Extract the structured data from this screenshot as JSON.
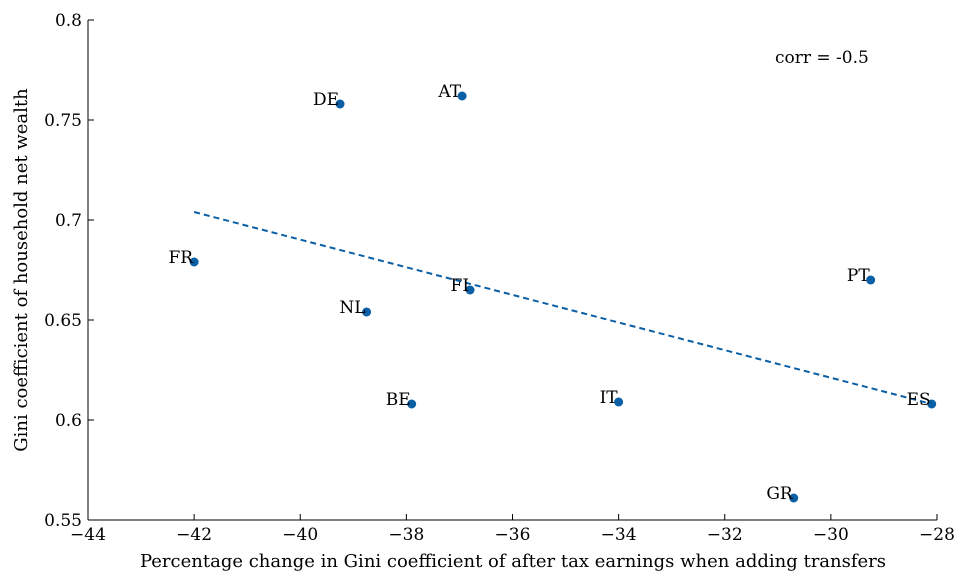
{
  "chart_data": {
    "type": "scatter",
    "xlabel": "Percentage change in Gini coefficient of after tax earnings when adding transfers",
    "ylabel": "Gini coefficient of household net wealth",
    "xlim": [
      -44,
      -28
    ],
    "ylim": [
      0.55,
      0.8
    ],
    "xticks": [
      -44,
      -42,
      -40,
      -38,
      -36,
      -34,
      -32,
      -30,
      -28
    ],
    "xtick_labels": [
      "−44",
      "−42",
      "−40",
      "−38",
      "−36",
      "−34",
      "−32",
      "−30",
      "−28"
    ],
    "yticks": [
      0.55,
      0.6,
      0.65,
      0.7,
      0.75,
      0.8
    ],
    "ytick_labels": [
      "0.55",
      "0.6",
      "0.65",
      "0.7",
      "0.75",
      "0.8"
    ],
    "points": [
      {
        "label": "DE",
        "x": -39.25,
        "y": 0.758
      },
      {
        "label": "AT",
        "x": -36.95,
        "y": 0.762
      },
      {
        "label": "FR",
        "x": -42.0,
        "y": 0.679
      },
      {
        "label": "FI",
        "x": -36.8,
        "y": 0.665
      },
      {
        "label": "PT",
        "x": -29.25,
        "y": 0.67
      },
      {
        "label": "NL",
        "x": -38.75,
        "y": 0.654
      },
      {
        "label": "BE",
        "x": -37.9,
        "y": 0.608
      },
      {
        "label": "IT",
        "x": -34.0,
        "y": 0.609
      },
      {
        "label": "ES",
        "x": -28.1,
        "y": 0.608
      },
      {
        "label": "GR",
        "x": -30.7,
        "y": 0.561
      }
    ],
    "trendline": {
      "x": [
        -42.0,
        -28.1
      ],
      "y": [
        0.704,
        0.608
      ]
    },
    "annotation": "corr = -0.5",
    "colors": {
      "points": "#0b5fa5",
      "trendline": "#0b5fa5",
      "axes": "#000000"
    },
    "grid": false,
    "legend": "none"
  }
}
